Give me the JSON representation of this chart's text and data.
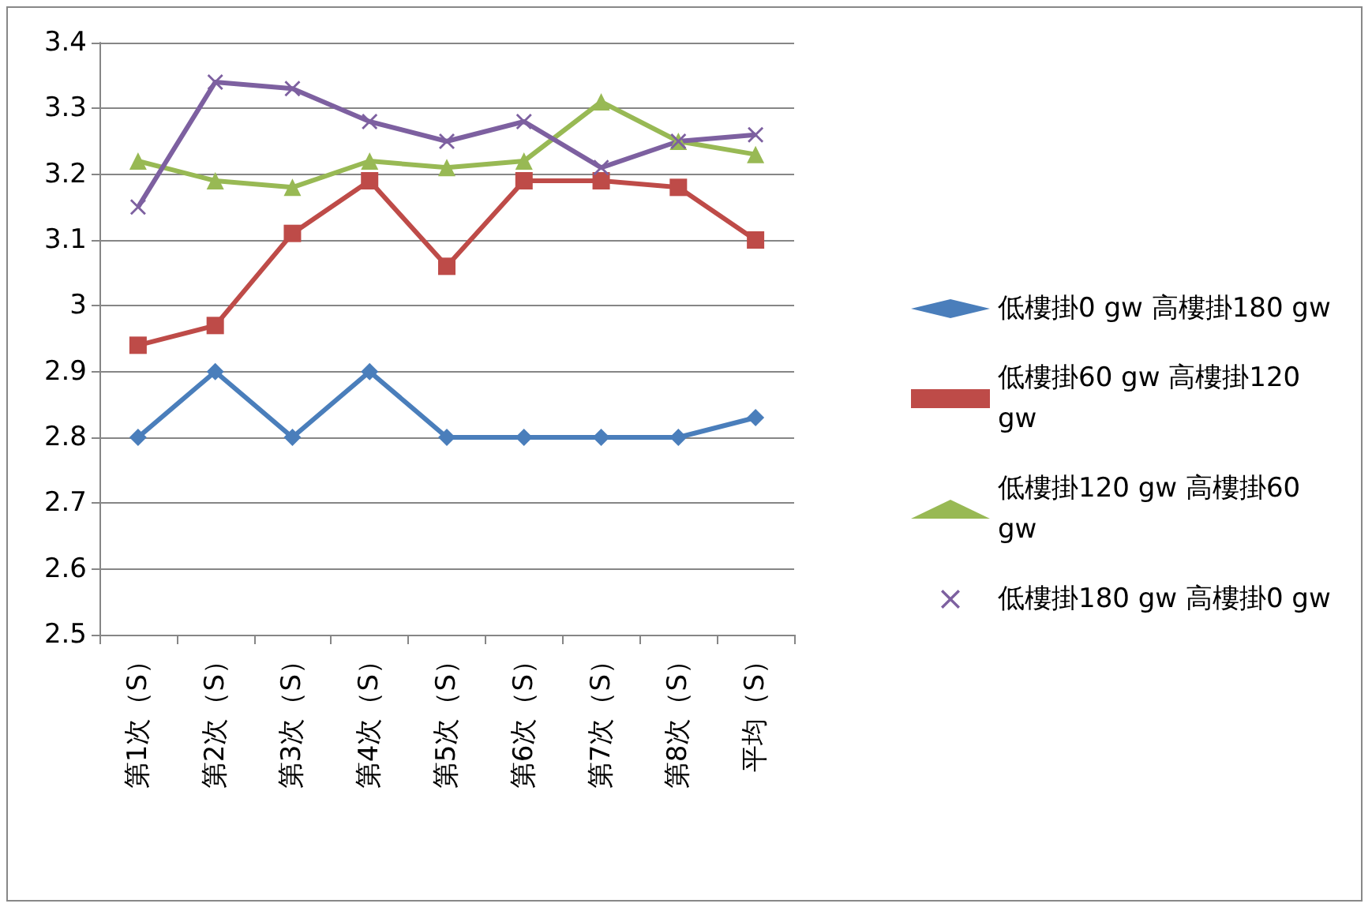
{
  "chart_data": {
    "type": "line",
    "categories": [
      "第1次（S）",
      "第2次（S）",
      "第3次（S）",
      "第4次（S）",
      "第5次（S）",
      "第6次（S）",
      "第7次（S）",
      "第8次（S）",
      "平均（S）"
    ],
    "series": [
      {
        "name": "低樓掛0 gw 高樓掛180 gw",
        "color": "#4a7ebb",
        "marker": "diamond",
        "values": [
          2.8,
          2.9,
          2.8,
          2.9,
          2.8,
          2.8,
          2.8,
          2.8,
          2.83
        ]
      },
      {
        "name": "低樓掛60 gw 高樓掛120 gw",
        "color": "#be4b48",
        "marker": "square",
        "values": [
          2.94,
          2.97,
          3.11,
          3.19,
          3.06,
          3.19,
          3.19,
          3.18,
          3.1
        ]
      },
      {
        "name": "低樓掛120 gw 高樓掛60 gw",
        "color": "#98b954",
        "marker": "triangle",
        "values": [
          3.22,
          3.19,
          3.18,
          3.22,
          3.21,
          3.22,
          3.31,
          3.25,
          3.23
        ]
      },
      {
        "name": "低樓掛180 gw 高樓掛0 gw",
        "color": "#7d60a0",
        "marker": "cross",
        "values": [
          3.15,
          3.34,
          3.33,
          3.28,
          3.25,
          3.28,
          3.21,
          3.25,
          3.26
        ]
      }
    ],
    "ylim": [
      2.5,
      3.4
    ],
    "yticks": [
      2.5,
      2.6,
      2.7,
      2.8,
      2.9,
      3,
      3.1,
      3.2,
      3.3,
      3.4
    ],
    "grid": "y",
    "legend": "right"
  }
}
